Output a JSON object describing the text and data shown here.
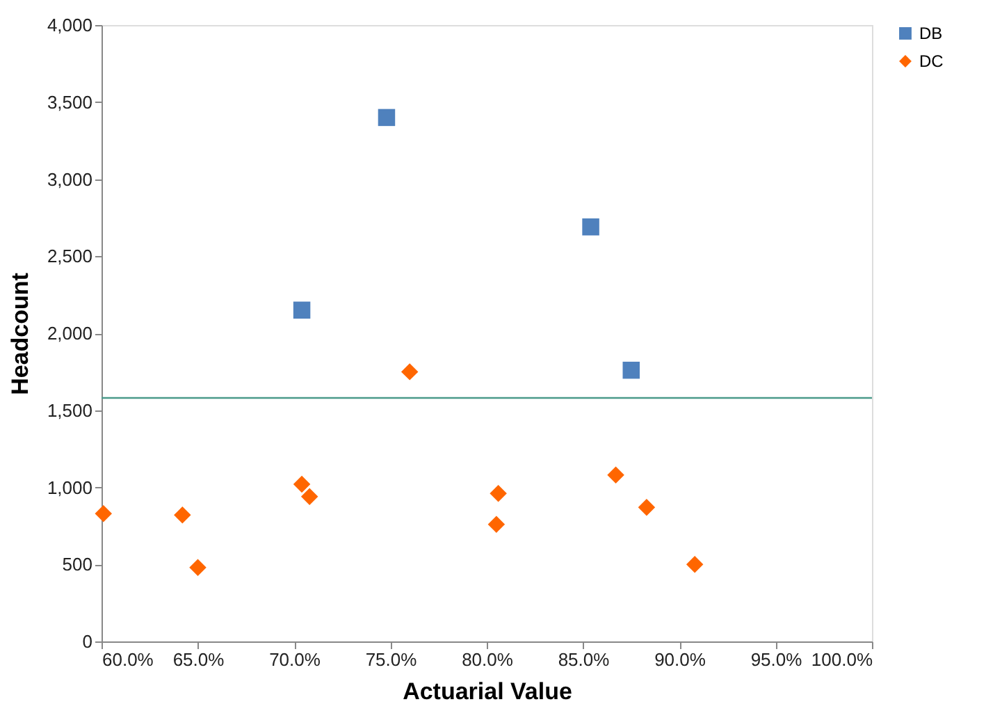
{
  "chart_data": {
    "type": "scatter",
    "xlabel": "Actuarial Value",
    "ylabel": "Headcount",
    "series": [
      {
        "name": "DB",
        "color": "#4f81bd",
        "marker": "square",
        "x": [
          70.4,
          74.8,
          85.4,
          87.5
        ],
        "values": [
          2150,
          3400,
          2690,
          1760
        ]
      },
      {
        "name": "DC",
        "color": "#ff6600",
        "marker": "diamond",
        "x": [
          60.1,
          64.2,
          65.0,
          70.4,
          70.8,
          76.0,
          80.6,
          80.5,
          86.7,
          88.3,
          90.8
        ],
        "values": [
          830,
          820,
          480,
          1020,
          940,
          1750,
          960,
          760,
          1080,
          870,
          500
        ]
      }
    ],
    "xlim": [
      60,
      100
    ],
    "xticks": [
      {
        "value": 60,
        "label": "60.0%"
      },
      {
        "value": 65,
        "label": "65.0%"
      },
      {
        "value": 70,
        "label": "70.0%"
      },
      {
        "value": 75,
        "label": "75.0%"
      },
      {
        "value": 80,
        "label": "80.0%"
      },
      {
        "value": 85,
        "label": "85.0%"
      },
      {
        "value": 90,
        "label": "90.0%"
      },
      {
        "value": 95,
        "label": "95.0%"
      },
      {
        "value": 100,
        "label": "100.0%"
      }
    ],
    "ylim": [
      0,
      4000
    ],
    "yticks": [
      {
        "value": 0,
        "label": "0"
      },
      {
        "value": 500,
        "label": "500"
      },
      {
        "value": 1000,
        "label": "1,000"
      },
      {
        "value": 1500,
        "label": "1,500"
      },
      {
        "value": 2000,
        "label": "2,000"
      },
      {
        "value": 2500,
        "label": "2,500"
      },
      {
        "value": 3000,
        "label": "3,000"
      },
      {
        "value": 3500,
        "label": "3,500"
      },
      {
        "value": 4000,
        "label": "4,000"
      }
    ],
    "ref_lines": [
      {
        "axis": "y",
        "value": 1580,
        "color": "#4a9a8a"
      }
    ],
    "legend": "right",
    "grid": false
  }
}
